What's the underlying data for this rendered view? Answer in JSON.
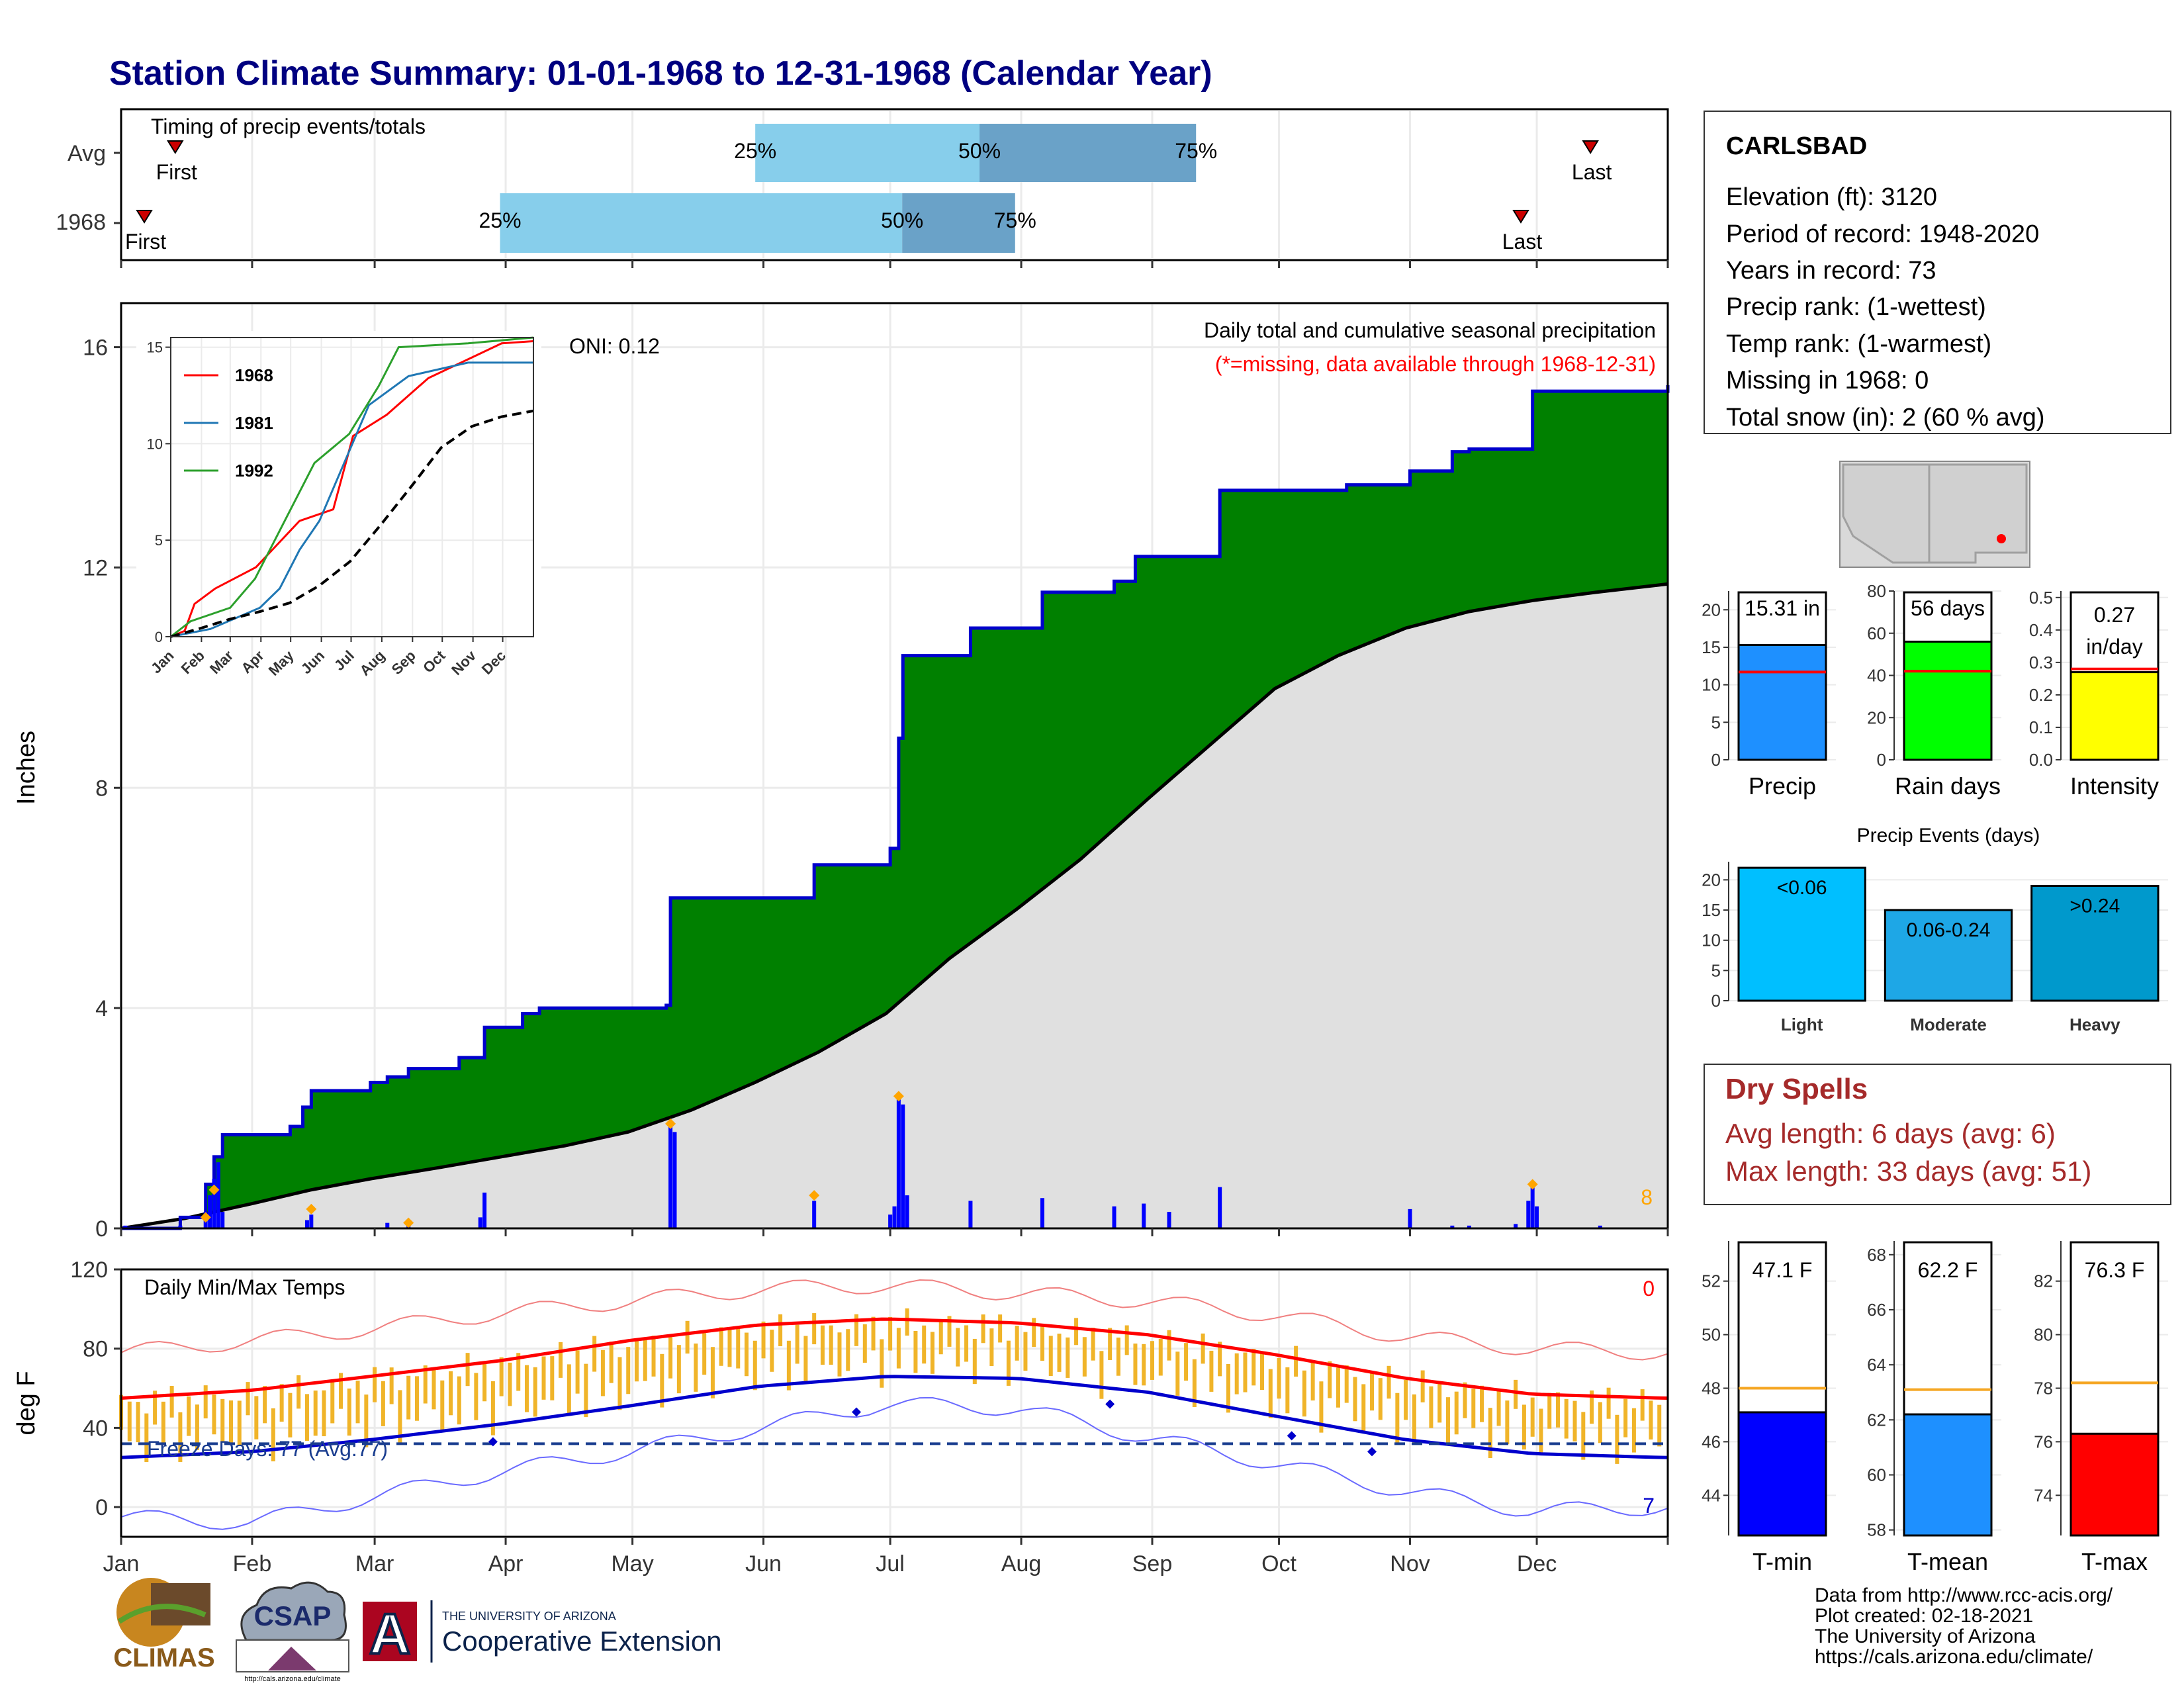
{
  "title": "Station Climate Summary: 01-01-1968 to 12-31-1968 (Calendar Year)",
  "colors": {
    "title": "#000080",
    "precip_green": "#008000",
    "cumavg_fill": "#e0e0e0",
    "cum_line": "#0000cc",
    "daily_bar": "#0000ff",
    "orange": "#ffa500",
    "q_light": "#87ceeb",
    "q_dark": "#6aa2c8",
    "marker": "#cc0000",
    "tmax": "#ff0000",
    "tmin": "#0000cc",
    "temp_bar": "#f0b429",
    "dry_spell": "#a52a2a",
    "precip_bar": "#1e90ff",
    "raindays_bar": "#00ff00",
    "intensity_bar": "#ffff00",
    "event_light": "#00bfff",
    "event_moderate": "#1ea7e6",
    "event_heavy": "#0099cc",
    "tmin_bar": "#0000ff",
    "tmean_bar": "#1e90ff",
    "tmax_bar": "#ff0000"
  },
  "timing": {
    "title": "Timing of precip events/totals",
    "row_labels": [
      "Avg",
      "1968"
    ],
    "first_label": "First",
    "last_label": "Last",
    "q_labels": [
      "25%",
      "50%",
      "75%"
    ],
    "avg": {
      "first": 0.035,
      "last": 0.95,
      "q25": 0.41,
      "q50": 0.555,
      "q75": 0.695
    },
    "year": {
      "first": 0.015,
      "last": 0.905,
      "q25": 0.245,
      "q50": 0.505,
      "q75": 0.578
    }
  },
  "info": {
    "station": "CARLSBAD",
    "lines": [
      "Elevation (ft): 3120",
      "Period of record: 1948-2020",
      "Years in record: 73",
      "Precip rank:  (1-wettest)",
      "Temp rank:  (1-warmest)",
      "Missing in 1968: 0",
      "Total snow (in): 2 (60 % avg)"
    ]
  },
  "dry_spells": {
    "title": "Dry Spells",
    "avg_length": "Avg length: 6 days (avg: 6)",
    "max_length": "Max length: 33 days (avg: 51)"
  },
  "credits": [
    "Data from http://www.rcc-acis.org/",
    "Plot created: 02-18-2021",
    "The University of Arizona",
    "https://cals.arizona.edu/climate/"
  ],
  "logos": {
    "climas": "CLIMAS",
    "csap": "CSAP",
    "csap_url": "http://cals.arizona.edu/climate",
    "ua_small": "THE UNIVERSITY OF ARIZONA",
    "ua_big": "Cooperative Extension",
    "ua_letter": "A"
  },
  "chart_data": [
    {
      "type": "area",
      "name": "cumulative-precip",
      "title": "Daily total and cumulative seasonal precipitation",
      "subtitle": "(*=missing, data available through 1968-12-31)",
      "ylabel": "Inches",
      "ylim": [
        0,
        16.8
      ],
      "yticks": [
        0,
        4,
        8,
        12,
        16
      ],
      "oni": "ONI: 0.12",
      "missing_count": "8",
      "months": [
        "Jan",
        "Feb",
        "Mar",
        "Apr",
        "May",
        "Jun",
        "Jul",
        "Aug",
        "Sep",
        "Oct",
        "Nov",
        "Dec"
      ],
      "cumulative_steps": [
        [
          0,
          0
        ],
        [
          14,
          0.2
        ],
        [
          20,
          0.8
        ],
        [
          22,
          1.3
        ],
        [
          24,
          1.7
        ],
        [
          40,
          1.85
        ],
        [
          43,
          2.2
        ],
        [
          45,
          2.5
        ],
        [
          59,
          2.65
        ],
        [
          63,
          2.75
        ],
        [
          68,
          2.9
        ],
        [
          80,
          3.1
        ],
        [
          86,
          3.65
        ],
        [
          95,
          3.9
        ],
        [
          99,
          4.0
        ],
        [
          129,
          4.05
        ],
        [
          130,
          6.0
        ],
        [
          164,
          6.6
        ],
        [
          182,
          6.9
        ],
        [
          184,
          8.9
        ],
        [
          185,
          10.4
        ],
        [
          201,
          10.9
        ],
        [
          218,
          11.55
        ],
        [
          235,
          11.75
        ],
        [
          240,
          12.2
        ],
        [
          260,
          13.4
        ],
        [
          275,
          13.4
        ],
        [
          290,
          13.5
        ],
        [
          305,
          13.75
        ],
        [
          315,
          14.1
        ],
        [
          319,
          14.15
        ],
        [
          334,
          15.2
        ],
        [
          366,
          15.31
        ]
      ],
      "avg_cumulative": [
        [
          0,
          0
        ],
        [
          15,
          0.18
        ],
        [
          31,
          0.45
        ],
        [
          45,
          0.7
        ],
        [
          59,
          0.9
        ],
        [
          75,
          1.1
        ],
        [
          90,
          1.3
        ],
        [
          105,
          1.5
        ],
        [
          120,
          1.75
        ],
        [
          135,
          2.15
        ],
        [
          150,
          2.65
        ],
        [
          165,
          3.2
        ],
        [
          181,
          3.9
        ],
        [
          196,
          4.9
        ],
        [
          212,
          5.8
        ],
        [
          227,
          6.7
        ],
        [
          243,
          7.8
        ],
        [
          258,
          8.8
        ],
        [
          273,
          9.8
        ],
        [
          288,
          10.4
        ],
        [
          304,
          10.9
        ],
        [
          319,
          11.2
        ],
        [
          334,
          11.4
        ],
        [
          349,
          11.55
        ],
        [
          366,
          11.7
        ]
      ],
      "daily_bars": [
        [
          1,
          0.05
        ],
        [
          14,
          0.05
        ],
        [
          20,
          0.3
        ],
        [
          21,
          0.6
        ],
        [
          22,
          0.9
        ],
        [
          23,
          1.2
        ],
        [
          24,
          0.3
        ],
        [
          44,
          0.15
        ],
        [
          45,
          0.25
        ],
        [
          63,
          0.1
        ],
        [
          68,
          0.08
        ],
        [
          85,
          0.2
        ],
        [
          86,
          0.65
        ],
        [
          130,
          1.85
        ],
        [
          131,
          1.75
        ],
        [
          164,
          0.5
        ],
        [
          182,
          0.25
        ],
        [
          183,
          0.4
        ],
        [
          184,
          2.35
        ],
        [
          185,
          2.25
        ],
        [
          186,
          0.6
        ],
        [
          201,
          0.5
        ],
        [
          218,
          0.55
        ],
        [
          235,
          0.4
        ],
        [
          242,
          0.45
        ],
        [
          248,
          0.3
        ],
        [
          260,
          0.75
        ],
        [
          305,
          0.35
        ],
        [
          315,
          0.05
        ],
        [
          319,
          0.05
        ],
        [
          330,
          0.08
        ],
        [
          333,
          0.5
        ],
        [
          334,
          0.8
        ],
        [
          335,
          0.4
        ],
        [
          350,
          0.05
        ]
      ],
      "orange_markers": [
        [
          20,
          0.2
        ],
        [
          22,
          0.7
        ],
        [
          45,
          0.35
        ],
        [
          68,
          0.1
        ],
        [
          130,
          1.9
        ],
        [
          164,
          0.6
        ],
        [
          184,
          2.4
        ],
        [
          334,
          0.8
        ]
      ],
      "inset": {
        "ylim": [
          0,
          15.5
        ],
        "yticks": [
          0,
          5,
          10,
          15
        ],
        "months": [
          "Jan",
          "Feb",
          "Mar",
          "Apr",
          "May",
          "Jun",
          "Jul",
          "Aug",
          "Sep",
          "Oct",
          "Nov",
          "Dec"
        ],
        "series": [
          {
            "name": "1968",
            "color": "#ff0000",
            "points": [
              [
                0,
                0
              ],
              [
                14,
                0.3
              ],
              [
                24,
                1.7
              ],
              [
                45,
                2.5
              ],
              [
                86,
                3.6
              ],
              [
                130,
                6.0
              ],
              [
                164,
                6.6
              ],
              [
                184,
                10.4
              ],
              [
                218,
                11.5
              ],
              [
                260,
                13.4
              ],
              [
                334,
                15.2
              ],
              [
                366,
                15.31
              ]
            ]
          },
          {
            "name": "1981",
            "color": "#1f77b4",
            "points": [
              [
                0,
                0
              ],
              [
                40,
                0.4
              ],
              [
                90,
                1.5
              ],
              [
                110,
                2.5
              ],
              [
                130,
                4.5
              ],
              [
                150,
                6.0
              ],
              [
                175,
                9.0
              ],
              [
                200,
                12.0
              ],
              [
                240,
                13.5
              ],
              [
                300,
                14.2
              ],
              [
                366,
                14.2
              ]
            ]
          },
          {
            "name": "1992",
            "color": "#2ca02c",
            "points": [
              [
                0,
                0
              ],
              [
                20,
                0.8
              ],
              [
                60,
                1.5
              ],
              [
                85,
                3.0
              ],
              [
                120,
                6.5
              ],
              [
                145,
                9.0
              ],
              [
                180,
                10.5
              ],
              [
                210,
                13.0
              ],
              [
                230,
                15.0
              ],
              [
                300,
                15.2
              ],
              [
                366,
                15.5
              ]
            ]
          },
          {
            "name": "avg",
            "color": "#000000",
            "dashed": true,
            "points": [
              [
                0,
                0
              ],
              [
                31,
                0.45
              ],
              [
                59,
                0.9
              ],
              [
                90,
                1.3
              ],
              [
                120,
                1.75
              ],
              [
                150,
                2.65
              ],
              [
                181,
                3.9
              ],
              [
                212,
                5.8
              ],
              [
                243,
                7.8
              ],
              [
                273,
                9.8
              ],
              [
                304,
                10.9
              ],
              [
                334,
                11.4
              ],
              [
                366,
                11.7
              ]
            ]
          }
        ]
      }
    },
    {
      "type": "bar",
      "name": "precip-events",
      "title": "Precip Events (days)",
      "categories": [
        "Light",
        "Moderate",
        "Heavy"
      ],
      "bar_labels": [
        "<0.06",
        "0.06-0.24",
        ">0.24"
      ],
      "values": [
        22,
        15,
        19
      ],
      "ylim": [
        0,
        23
      ],
      "yticks": [
        0,
        5,
        10,
        15,
        20
      ]
    },
    {
      "type": "line",
      "name": "daily-temps",
      "title": "Daily Min/Max Temps",
      "ylabel": "deg F",
      "ylim": [
        -15,
        120
      ],
      "yticks": [
        0,
        40,
        80,
        120
      ],
      "freeze_label": "Freeze Days: 77 (Avg:77)",
      "freeze_temp": 32,
      "missing_max": "0",
      "missing_min": "7",
      "months": [
        "Jan",
        "Feb",
        "Mar",
        "Apr",
        "May",
        "Jun",
        "Jul",
        "Aug",
        "Sep",
        "Oct",
        "Nov",
        "Dec"
      ],
      "avg_tmax": [
        [
          0,
          55
        ],
        [
          31,
          59
        ],
        [
          59,
          66
        ],
        [
          90,
          74
        ],
        [
          120,
          84
        ],
        [
          151,
          92
        ],
        [
          181,
          95
        ],
        [
          212,
          93
        ],
        [
          243,
          87
        ],
        [
          273,
          77
        ],
        [
          304,
          65
        ],
        [
          334,
          57
        ],
        [
          365,
          55
        ]
      ],
      "avg_tmin": [
        [
          0,
          25
        ],
        [
          31,
          28
        ],
        [
          59,
          34
        ],
        [
          90,
          42
        ],
        [
          120,
          51
        ],
        [
          151,
          61
        ],
        [
          181,
          66
        ],
        [
          212,
          65
        ],
        [
          243,
          58
        ],
        [
          273,
          46
        ],
        [
          304,
          34
        ],
        [
          334,
          27
        ],
        [
          365,
          25
        ]
      ],
      "record_high": [
        [
          0,
          78
        ],
        [
          31,
          84
        ],
        [
          59,
          90
        ],
        [
          90,
          98
        ],
        [
          120,
          104
        ],
        [
          151,
          110
        ],
        [
          181,
          112
        ],
        [
          212,
          108
        ],
        [
          243,
          104
        ],
        [
          273,
          97
        ],
        [
          304,
          86
        ],
        [
          334,
          80
        ],
        [
          365,
          78
        ]
      ],
      "record_low": [
        [
          0,
          -5
        ],
        [
          31,
          -8
        ],
        [
          59,
          5
        ],
        [
          90,
          18
        ],
        [
          120,
          28
        ],
        [
          151,
          40
        ],
        [
          181,
          52
        ],
        [
          212,
          50
        ],
        [
          243,
          35
        ],
        [
          273,
          22
        ],
        [
          304,
          8
        ],
        [
          334,
          -2
        ],
        [
          365,
          0
        ]
      ],
      "freeze_days": [
        [
          88,
          33
        ],
        [
          174,
          48
        ],
        [
          234,
          52
        ],
        [
          277,
          36
        ],
        [
          296,
          28
        ]
      ]
    },
    {
      "type": "bar",
      "name": "precip-total",
      "categories": [
        "Precip"
      ],
      "values": [
        15.31
      ],
      "avg": 11.7,
      "label": "15.31 in",
      "ylim": [
        0,
        22.5
      ],
      "yticks": [
        0,
        5,
        10,
        15,
        20
      ]
    },
    {
      "type": "bar",
      "name": "rain-days",
      "categories": [
        "Rain days"
      ],
      "values": [
        56
      ],
      "avg": 42,
      "label": "56 days",
      "ylim": [
        0,
        80
      ],
      "yticks": [
        0,
        20,
        40,
        60,
        80
      ]
    },
    {
      "type": "bar",
      "name": "intensity",
      "categories": [
        "Intensity"
      ],
      "values": [
        0.27
      ],
      "avg": 0.28,
      "label": "0.27",
      "label2": "in/day",
      "ylim": [
        0,
        0.52
      ],
      "yticks": [
        0.0,
        0.1,
        0.2,
        0.3,
        0.4,
        0.5
      ]
    },
    {
      "type": "bar",
      "name": "t-min",
      "categories": [
        "T-min"
      ],
      "values": [
        47.1
      ],
      "avg": 48.0,
      "label": "47.1 F",
      "ylim": [
        42.5,
        53.5
      ],
      "yticks": [
        44,
        46,
        48,
        50,
        52
      ]
    },
    {
      "type": "bar",
      "name": "t-mean",
      "categories": [
        "T-mean"
      ],
      "values": [
        62.2
      ],
      "avg": 63.1,
      "label": "62.2 F",
      "ylim": [
        57.8,
        68.5
      ],
      "yticks": [
        58,
        60,
        62,
        64,
        66,
        68
      ]
    },
    {
      "type": "bar",
      "name": "t-max",
      "categories": [
        "T-max"
      ],
      "values": [
        76.3
      ],
      "avg": 78.2,
      "label": "76.3 F",
      "ylim": [
        72.5,
        83.5
      ],
      "yticks": [
        74,
        76,
        78,
        80,
        82
      ]
    }
  ]
}
